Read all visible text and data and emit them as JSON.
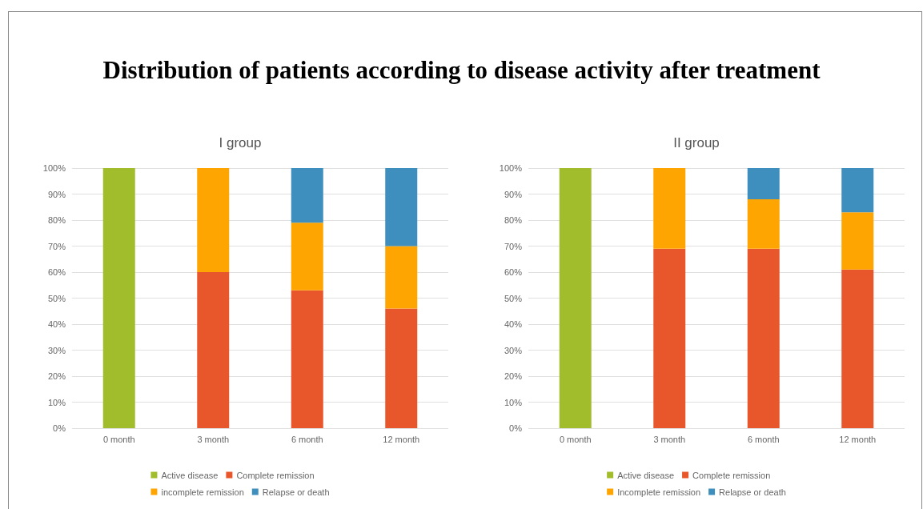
{
  "chart_data": [
    {
      "type": "bar",
      "title": "Distribution of patients according to disease activity after treatment",
      "subtitle": "I group",
      "categories": [
        "0 month",
        "3 month",
        "6 month",
        "12 month"
      ],
      "stacked": true,
      "series": [
        {
          "name": "Active disease",
          "color": "#a2bd2b",
          "values": [
            100,
            null,
            null,
            null
          ]
        },
        {
          "name": "Complete remission",
          "color": "#e8572c",
          "values": [
            null,
            60,
            53,
            46
          ]
        },
        {
          "name": "incomplete remission",
          "color": "#ffa502",
          "values": [
            null,
            40,
            26,
            24
          ]
        },
        {
          "name": "Relapse or death",
          "color": "#3f8fbe",
          "values": [
            null,
            null,
            21,
            30
          ]
        }
      ],
      "ylim": [
        0,
        100
      ],
      "yticks": [
        {
          "value": 0,
          "label": "0%"
        },
        {
          "value": 10,
          "label": "10%"
        },
        {
          "value": 20,
          "label": "20%"
        },
        {
          "value": 30,
          "label": "30%"
        },
        {
          "value": 40,
          "label": "40%"
        },
        {
          "value": 50,
          "label": "50%"
        },
        {
          "value": 60,
          "label": "60%"
        },
        {
          "value": 70,
          "label": "70%"
        },
        {
          "value": 80,
          "label": "80%"
        },
        {
          "value": 90,
          "label": "90%"
        },
        {
          "value": 100,
          "label": "100%"
        }
      ],
      "grid": "y",
      "legend": "bottom"
    },
    {
      "type": "bar",
      "subtitle": "II group",
      "categories": [
        "0 month",
        "3 month",
        "6 month",
        "12 month"
      ],
      "stacked": true,
      "series": [
        {
          "name": "Active disease",
          "color": "#a2bd2b",
          "values": [
            100,
            null,
            null,
            null
          ]
        },
        {
          "name": "Complete remission",
          "color": "#e8572c",
          "values": [
            null,
            69,
            69,
            61
          ]
        },
        {
          "name": "Incomplete remission",
          "color": "#ffa502",
          "values": [
            null,
            31,
            19,
            22
          ]
        },
        {
          "name": "Relapse or death",
          "color": "#3f8fbe",
          "values": [
            null,
            null,
            12,
            17
          ]
        }
      ],
      "ylim": [
        0,
        100
      ],
      "yticks": [
        {
          "value": 0,
          "label": "0%"
        },
        {
          "value": 10,
          "label": "10%"
        },
        {
          "value": 20,
          "label": "20%"
        },
        {
          "value": 30,
          "label": "30%"
        },
        {
          "value": 40,
          "label": "40%"
        },
        {
          "value": 50,
          "label": "50%"
        },
        {
          "value": 60,
          "label": "60%"
        },
        {
          "value": 70,
          "label": "70%"
        },
        {
          "value": 80,
          "label": "80%"
        },
        {
          "value": 90,
          "label": "90%"
        },
        {
          "value": 100,
          "label": "100%"
        }
      ],
      "grid": "y",
      "legend": "bottom"
    }
  ]
}
